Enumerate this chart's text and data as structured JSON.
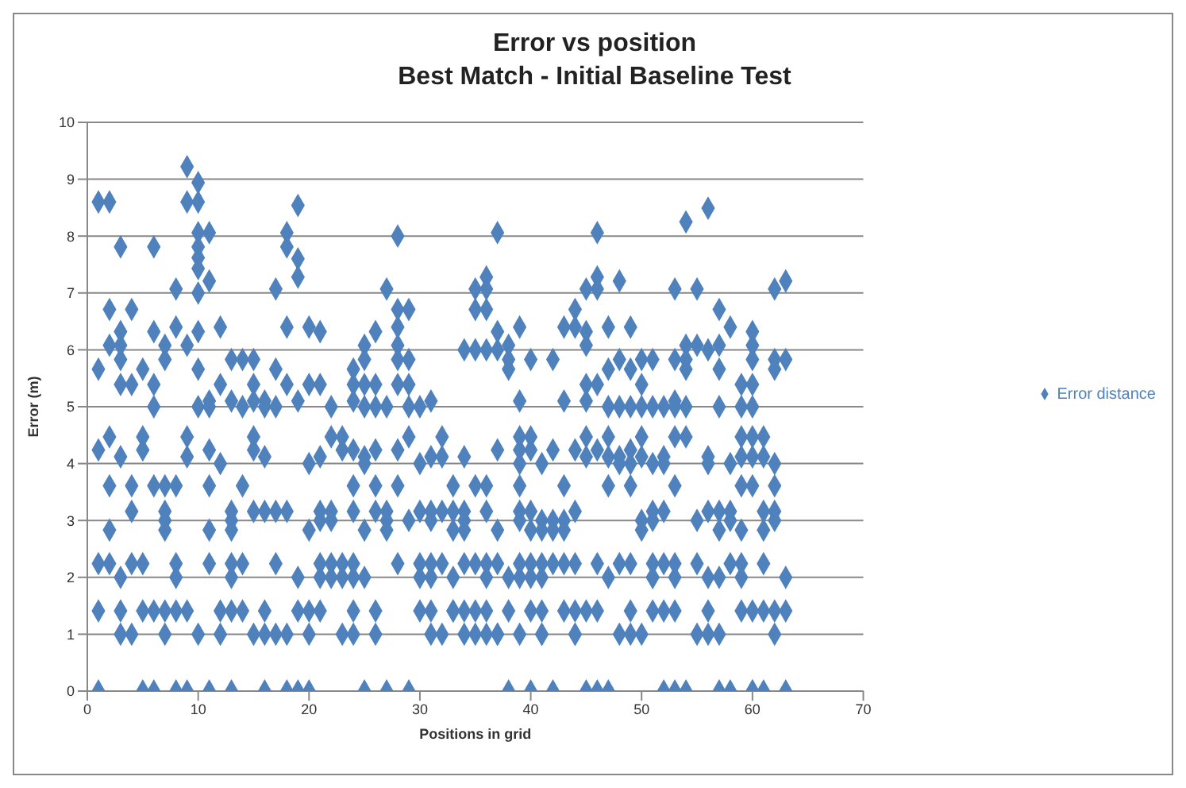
{
  "chart_data": {
    "type": "scatter",
    "title": "Error vs position",
    "subtitle": "Best Match - Initial Baseline Test",
    "xlabel": "Positions in grid",
    "ylabel": "Error (m)",
    "xlim": [
      0,
      70
    ],
    "xticks": [
      0,
      10,
      20,
      30,
      40,
      50,
      60,
      70
    ],
    "ylim": [
      0,
      10
    ],
    "yticks": [
      0,
      1,
      2,
      3,
      4,
      5,
      6,
      7,
      8,
      9,
      10
    ],
    "grid": "y",
    "legend": "right",
    "marker": "diamond",
    "series": [
      {
        "name": "Error distance",
        "color": "#4f81bd",
        "x": [
          1,
          1,
          1,
          1,
          1,
          1,
          2,
          2,
          2,
          2,
          2,
          2,
          2,
          3,
          3,
          3,
          3,
          3,
          3,
          3,
          3,
          3,
          4,
          4,
          4,
          4,
          4,
          4,
          5,
          5,
          5,
          5,
          5,
          5,
          6,
          6,
          6,
          6,
          6,
          6,
          6,
          7,
          7,
          7,
          7,
          7,
          7,
          7,
          7,
          8,
          8,
          8,
          8,
          8,
          8,
          8,
          9,
          9,
          9,
          9,
          9,
          9,
          9,
          10,
          10,
          10,
          10,
          10,
          10,
          10,
          10,
          10,
          10,
          10,
          11,
          11,
          11,
          11,
          11,
          11,
          11,
          11,
          11,
          12,
          12,
          12,
          12,
          12,
          13,
          13,
          13,
          13,
          13,
          13,
          13,
          13,
          13,
          14,
          14,
          14,
          14,
          14,
          15,
          15,
          15,
          15,
          15,
          15,
          15,
          16,
          16,
          16,
          16,
          16,
          16,
          16,
          17,
          17,
          17,
          17,
          17,
          17,
          18,
          18,
          18,
          18,
          18,
          18,
          18,
          19,
          19,
          19,
          19,
          19,
          19,
          19,
          20,
          20,
          20,
          20,
          20,
          20,
          20,
          21,
          21,
          21,
          21,
          21,
          21,
          21,
          21,
          22,
          22,
          22,
          22,
          22,
          22,
          23,
          23,
          23,
          23,
          23,
          24,
          24,
          24,
          24,
          24,
          24,
          24,
          24,
          24,
          24,
          25,
          25,
          25,
          25,
          25,
          25,
          25,
          25,
          25,
          26,
          26,
          26,
          26,
          26,
          26,
          26,
          26,
          27,
          27,
          27,
          27,
          27,
          27,
          28,
          28,
          28,
          28,
          28,
          28,
          28,
          28,
          28,
          29,
          29,
          29,
          29,
          29,
          29,
          29,
          30,
          30,
          30,
          30,
          30,
          30,
          31,
          31,
          31,
          31,
          31,
          31,
          31,
          31,
          32,
          32,
          32,
          32,
          32,
          33,
          33,
          33,
          33,
          33,
          33,
          34,
          34,
          34,
          34,
          34,
          34,
          34,
          34,
          35,
          35,
          35,
          35,
          35,
          35,
          35,
          36,
          36,
          36,
          36,
          36,
          36,
          36,
          36,
          36,
          36,
          37,
          37,
          37,
          37,
          37,
          37,
          37,
          37,
          38,
          38,
          38,
          38,
          38,
          38,
          39,
          39,
          39,
          39,
          39,
          39,
          39,
          39,
          39,
          39,
          39,
          40,
          40,
          40,
          40,
          40,
          40,
          40,
          40,
          40,
          41,
          41,
          41,
          41,
          41,
          41,
          41,
          41,
          42,
          42,
          42,
          42,
          42,
          42,
          43,
          43,
          43,
          43,
          43,
          43,
          43,
          44,
          44,
          44,
          44,
          44,
          44,
          44,
          44,
          45,
          45,
          45,
          45,
          45,
          45,
          45,
          45,
          45,
          46,
          46,
          46,
          46,
          46,
          46,
          46,
          46,
          47,
          47,
          47,
          47,
          47,
          47,
          47,
          47,
          48,
          48,
          48,
          48,
          48,
          48,
          48,
          49,
          49,
          49,
          49,
          49,
          49,
          49,
          49,
          49,
          50,
          50,
          50,
          50,
          50,
          50,
          50,
          50,
          51,
          51,
          51,
          51,
          51,
          51,
          51,
          51,
          51,
          52,
          52,
          52,
          52,
          52,
          52,
          52,
          53,
          53,
          53,
          53,
          53,
          53,
          53,
          53,
          53,
          53,
          54,
          54,
          54,
          54,
          54,
          54,
          54,
          55,
          55,
          55,
          55,
          55,
          56,
          56,
          56,
          56,
          56,
          56,
          56,
          56,
          57,
          57,
          57,
          57,
          57,
          57,
          57,
          57,
          57,
          58,
          58,
          58,
          58,
          58,
          58,
          59,
          59,
          59,
          59,
          59,
          59,
          59,
          59,
          59,
          60,
          60,
          60,
          60,
          60,
          60,
          60,
          60,
          60,
          60,
          60,
          61,
          61,
          61,
          61,
          61,
          61,
          61,
          62,
          62,
          62,
          62,
          62,
          62,
          62,
          62,
          62,
          63,
          63,
          63,
          63,
          63
        ],
        "values": [
          8.6,
          5.66,
          4.24,
          2.24,
          1.41,
          0,
          8.6,
          6.71,
          6.08,
          4.47,
          3.61,
          2.83,
          2.24,
          7.81,
          6.32,
          6.08,
          5.83,
          5.39,
          4.12,
          2,
          1.41,
          1,
          6.71,
          5.39,
          3.61,
          3.16,
          2.24,
          1,
          5.66,
          4.47,
          4.24,
          2.24,
          1.41,
          0,
          7.81,
          6.32,
          5.39,
          5,
          3.61,
          1.41,
          0,
          6.08,
          5.83,
          3.61,
          3.16,
          3,
          2.83,
          1.41,
          1,
          7.07,
          6.4,
          3.61,
          2.24,
          2,
          1.41,
          0,
          9.22,
          8.6,
          6.08,
          4.47,
          4.12,
          1.41,
          0,
          8.94,
          8.6,
          8.06,
          7.81,
          7.62,
          7.43,
          7,
          6.32,
          5.66,
          5,
          1,
          8.06,
          7.21,
          5.1,
          5,
          4.24,
          3.61,
          2.83,
          2.24,
          0,
          6.4,
          5.39,
          4,
          1.41,
          1,
          5.83,
          5.1,
          3.16,
          3,
          2.83,
          2.24,
          2,
          1.41,
          0,
          5.83,
          5,
          3.61,
          2.24,
          1.41,
          5.83,
          5.39,
          5.1,
          4.47,
          4.24,
          3.16,
          1,
          5.1,
          5,
          4.12,
          3.16,
          1.41,
          1,
          0,
          7.07,
          5.66,
          5,
          3.16,
          2.24,
          1,
          8.06,
          7.81,
          6.4,
          5.39,
          3.16,
          1,
          0,
          8.54,
          7.6,
          7.28,
          5.1,
          2,
          1.41,
          0,
          6.4,
          5.39,
          4,
          2.83,
          1.41,
          1,
          0,
          6.32,
          5.39,
          4.12,
          3.16,
          3,
          2.24,
          2,
          1.41,
          5,
          4.47,
          3.16,
          3,
          2.24,
          2,
          1,
          4.47,
          4.24,
          2.24,
          2,
          1,
          5.66,
          5.39,
          5.1,
          4.24,
          3.61,
          3.16,
          2.24,
          2,
          1.41,
          0,
          6.08,
          5.83,
          5.39,
          5,
          4.12,
          4,
          2.83,
          2,
          1.41,
          6.32,
          5.39,
          5,
          4.24,
          3.61,
          3.16,
          1,
          0,
          7.07,
          5,
          3.16,
          3,
          2.83,
          2.24,
          8,
          6.71,
          6.4,
          6.08,
          5.83,
          5.39,
          4.24,
          3.61,
          0,
          6.71,
          5.83,
          5.39,
          5,
          4.47,
          3,
          1.41,
          5,
          4,
          3.16,
          2.24,
          2,
          1,
          5.1,
          4.12,
          3.16,
          3,
          2.24,
          2,
          1.41,
          1,
          4.47,
          4.12,
          3.16,
          2.24,
          1.41,
          3.61,
          3.16,
          2.83,
          2,
          1.41,
          1,
          6,
          4.12,
          3.16,
          3,
          2.83,
          2.24,
          1.41,
          1,
          7.07,
          6.71,
          6,
          3.61,
          2.24,
          1.41,
          1,
          7.28,
          7.07,
          6.71,
          6,
          3.61,
          3.16,
          2.24,
          2,
          1.41,
          1,
          8.06,
          6.32,
          6,
          4.24,
          2.83,
          2.24,
          1,
          0,
          6.08,
          5.83,
          5.66,
          2,
          1.41,
          1,
          6.4,
          5.1,
          4.47,
          4.24,
          4,
          3.61,
          3.16,
          3,
          2.24,
          2,
          0,
          5.83,
          4.47,
          4.24,
          3.16,
          2.83,
          2.24,
          2,
          1.41,
          1,
          4,
          3,
          2.83,
          2.24,
          2,
          1.41,
          1,
          0,
          5.83,
          4.24,
          3,
          2.83,
          2.24,
          1.41,
          6.4,
          5.1,
          3.61,
          3,
          2.83,
          2.24,
          1,
          6.71,
          6.4,
          4.24,
          3.16,
          2.24,
          1.41,
          1,
          0,
          7.07,
          6.32,
          6.08,
          5.39,
          5.1,
          4.47,
          4.12,
          1.41,
          0,
          8.06,
          7.28,
          7.07,
          5.39,
          4.24,
          2.24,
          1.41,
          0,
          6.4,
          5.66,
          5,
          4.47,
          4.12,
          3.61,
          2,
          1,
          7.21,
          5.83,
          5,
          4.12,
          4,
          2.24,
          1,
          6.4,
          5.66,
          5,
          4.24,
          4,
          3.61,
          2.24,
          1.41,
          1,
          5.83,
          5.39,
          5,
          4.47,
          4.12,
          3,
          2.83,
          2,
          5.83,
          5,
          4,
          3.16,
          3,
          2.24,
          2,
          1.41,
          0,
          5,
          4.12,
          4,
          3.16,
          2.24,
          1.41,
          0,
          7.07,
          5.83,
          5.1,
          5,
          4.47,
          3.61,
          2.24,
          2,
          1.41,
          0,
          8.25,
          6.08,
          5.83,
          5.66,
          5,
          4.47,
          1,
          7.07,
          6.08,
          3,
          2.24,
          1,
          8.49,
          6,
          4.12,
          4,
          3.16,
          2,
          1.41,
          0,
          6.71,
          6.08,
          5.66,
          5,
          3.16,
          2.83,
          2,
          1,
          0,
          6.4,
          4,
          3.16,
          3,
          2.24,
          1.41,
          5.39,
          5,
          4.47,
          4.12,
          3.61,
          2.83,
          2.24,
          2,
          0,
          6.32,
          6.08,
          5.83,
          5.39,
          5,
          4.47,
          4.12,
          3.61,
          1.41,
          0,
          4.47,
          4.12,
          3.16,
          2.83,
          2.24,
          1.41,
          0,
          7.07,
          5.83,
          5.66,
          4,
          3.61,
          3.16,
          3,
          1.41,
          1,
          7.21,
          5.83,
          2,
          1.41,
          0
        ]
      }
    ]
  }
}
